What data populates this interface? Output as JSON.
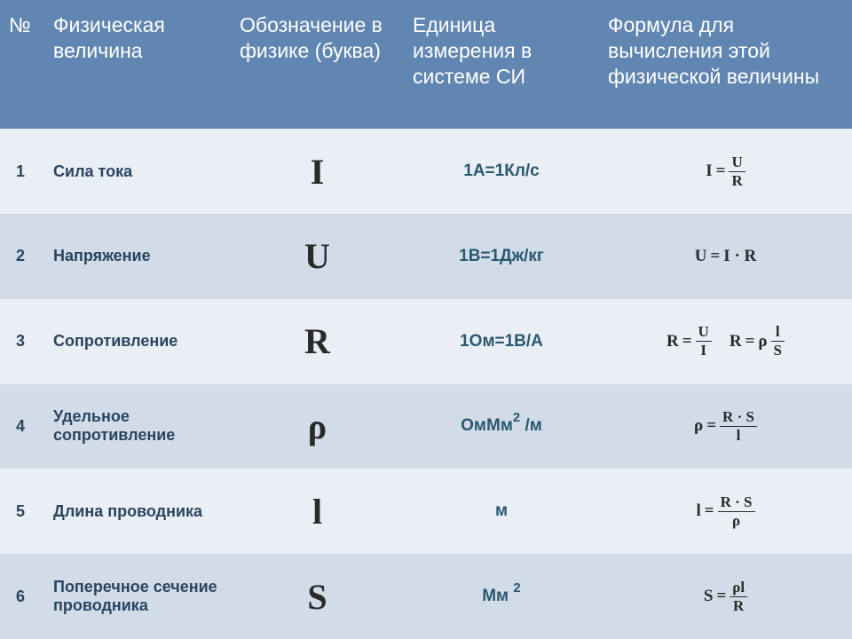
{
  "type": "table",
  "background_color": "#ffffff",
  "header": {
    "bg_color": "#6186b1",
    "text_color": "#ffffff",
    "fontsize": 23,
    "columns": [
      "№",
      "Физическая величина",
      "Обозначение в физике (буква)",
      "Единица измерения в системе СИ",
      "Формула для вычисления этой физической величины"
    ]
  },
  "row_colors": {
    "odd": "#eaeef5",
    "even": "#d2dce9"
  },
  "name_color": "#2a4560",
  "symbol_color": "#2a2a2a",
  "unit_color": "#29586f",
  "formula_color": "#2a2a2a",
  "symbol_fontsize": 40,
  "name_fontsize": 18,
  "unit_fontsize": 19,
  "formula_fontsize": 19,
  "rows": [
    {
      "num": "1",
      "name": "Сила тока",
      "symbol": "I",
      "unit_html": "1А=1Кл/с",
      "formulas": [
        {
          "lhs": "I",
          "op": "=",
          "frac": {
            "top": "U",
            "bot": "R"
          }
        }
      ]
    },
    {
      "num": "2",
      "name": "Напряжение",
      "symbol": "U",
      "unit_html": "1В=1Дж/кг",
      "formulas": [
        {
          "lhs": "U",
          "op": "=",
          "text": "I · R"
        }
      ]
    },
    {
      "num": "3",
      "name": "Сопротивление",
      "symbol": "R",
      "unit_html": "1Ом=1В/А",
      "formulas": [
        {
          "lhs": "R",
          "op": "=",
          "frac": {
            "top": "U",
            "bot": "I"
          }
        },
        {
          "lhs": "R",
          "op": "=",
          "pre": "ρ",
          "frac": {
            "top": "l",
            "bot": "S"
          }
        }
      ]
    },
    {
      "num": "4",
      "name": "Удельное сопротивление",
      "symbol": "ρ",
      "unit_html": "ОмМм<span class='sup'>2</span> /м",
      "formulas": [
        {
          "lhs": "ρ",
          "op": "=",
          "frac": {
            "top": "R · S",
            "bot": "l"
          }
        }
      ]
    },
    {
      "num": "5",
      "name": "Длина проводника",
      "symbol": "l",
      "unit_html": "м",
      "formulas": [
        {
          "lhs": "l",
          "op": "=",
          "frac": {
            "top": "R · S",
            "bot": "ρ"
          }
        }
      ]
    },
    {
      "num": "6",
      "name": "Поперечное сечение проводника",
      "symbol": "S",
      "unit_html": "Мм <span class='sup'>2</span>",
      "formulas": [
        {
          "lhs": "S",
          "op": "=",
          "frac": {
            "top": "ρl",
            "bot": "R"
          }
        }
      ]
    }
  ]
}
